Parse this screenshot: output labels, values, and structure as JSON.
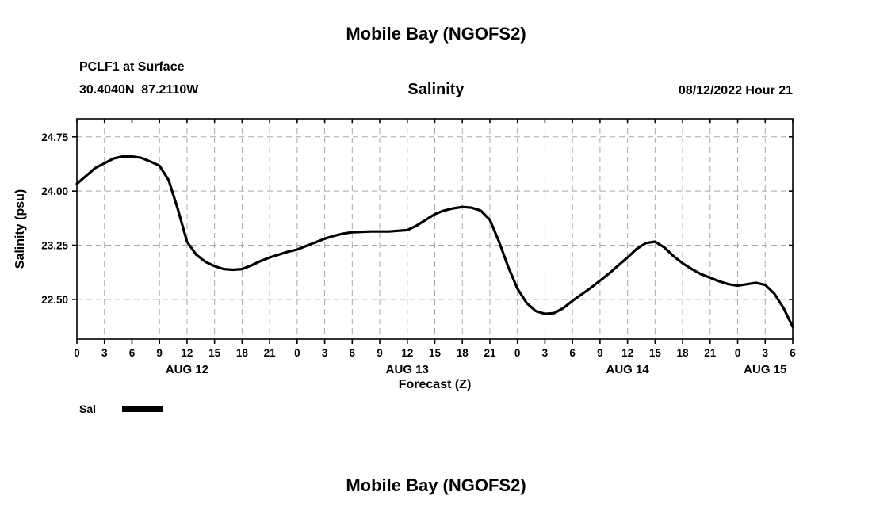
{
  "page": {
    "title": "Mobile Bay (NGOFS2)",
    "station_line1": "PCLF1 at Surface",
    "station_line2": "30.4040N  87.2110W",
    "header_datetime": "08/12/2022 Hour 21",
    "bottom_title": "Mobile Bay (NGOFS2)"
  },
  "chart_data": {
    "type": "line",
    "title": "Salinity",
    "xlabel": "Forecast (Z)",
    "ylabel": "Salinity (psu)",
    "xlim": [
      0,
      78
    ],
    "ylim": [
      21.95,
      25.0
    ],
    "grid": true,
    "legend_position": "below-left",
    "yticks": [
      22.5,
      23.25,
      24.0,
      24.75
    ],
    "ytick_labels": [
      "22.50",
      "23.25",
      "24.00",
      "24.75"
    ],
    "xticks": [
      0,
      3,
      6,
      9,
      12,
      15,
      18,
      21,
      24,
      27,
      30,
      33,
      36,
      39,
      42,
      45,
      48,
      51,
      54,
      57,
      60,
      63,
      66,
      69,
      72,
      75,
      78
    ],
    "xtick_labels": [
      "0",
      "3",
      "6",
      "9",
      "12",
      "15",
      "18",
      "21",
      "0",
      "3",
      "6",
      "9",
      "12",
      "15",
      "18",
      "21",
      "0",
      "3",
      "6",
      "9",
      "12",
      "15",
      "18",
      "21",
      "0",
      "3",
      "6"
    ],
    "date_labels": [
      {
        "label": "AUG 12",
        "x": 12
      },
      {
        "label": "AUG 13",
        "x": 36
      },
      {
        "label": "AUG 14",
        "x": 60
      },
      {
        "label": "AUG 15",
        "x": 75
      }
    ],
    "legend": [
      {
        "name": "Sal",
        "color": "#000000"
      }
    ],
    "series": [
      {
        "name": "Sal",
        "color": "#000000",
        "points": [
          [
            0,
            24.1
          ],
          [
            2,
            24.32
          ],
          [
            4,
            24.45
          ],
          [
            5,
            24.48
          ],
          [
            6,
            24.48
          ],
          [
            7,
            24.46
          ],
          [
            8,
            24.41
          ],
          [
            9,
            24.35
          ],
          [
            10,
            24.15
          ],
          [
            11,
            23.75
          ],
          [
            12,
            23.3
          ],
          [
            13,
            23.12
          ],
          [
            14,
            23.02
          ],
          [
            15,
            22.96
          ],
          [
            16,
            22.92
          ],
          [
            17,
            22.91
          ],
          [
            18,
            22.92
          ],
          [
            19,
            22.97
          ],
          [
            20,
            23.03
          ],
          [
            21,
            23.08
          ],
          [
            22,
            23.12
          ],
          [
            23,
            23.16
          ],
          [
            24,
            23.19
          ],
          [
            25,
            23.24
          ],
          [
            26,
            23.29
          ],
          [
            27,
            23.34
          ],
          [
            28,
            23.38
          ],
          [
            29,
            23.41
          ],
          [
            30,
            23.43
          ],
          [
            32,
            23.44
          ],
          [
            34,
            23.44
          ],
          [
            36,
            23.46
          ],
          [
            37,
            23.52
          ],
          [
            38,
            23.6
          ],
          [
            39,
            23.68
          ],
          [
            40,
            23.73
          ],
          [
            41,
            23.76
          ],
          [
            42,
            23.78
          ],
          [
            43,
            23.77
          ],
          [
            44,
            23.73
          ],
          [
            45,
            23.6
          ],
          [
            46,
            23.3
          ],
          [
            47,
            22.95
          ],
          [
            48,
            22.65
          ],
          [
            49,
            22.45
          ],
          [
            50,
            22.34
          ],
          [
            51,
            22.3
          ],
          [
            52,
            22.31
          ],
          [
            53,
            22.38
          ],
          [
            54,
            22.48
          ],
          [
            55,
            22.57
          ],
          [
            56,
            22.66
          ],
          [
            57,
            22.76
          ],
          [
            58,
            22.86
          ],
          [
            59,
            22.97
          ],
          [
            60,
            23.08
          ],
          [
            61,
            23.2
          ],
          [
            62,
            23.28
          ],
          [
            63,
            23.3
          ],
          [
            64,
            23.22
          ],
          [
            65,
            23.1
          ],
          [
            66,
            23.0
          ],
          [
            67,
            22.92
          ],
          [
            68,
            22.85
          ],
          [
            69,
            22.8
          ],
          [
            70,
            22.75
          ],
          [
            71,
            22.71
          ],
          [
            72,
            22.69
          ],
          [
            73,
            22.71
          ],
          [
            74,
            22.73
          ],
          [
            75,
            22.7
          ],
          [
            76,
            22.58
          ],
          [
            77,
            22.38
          ],
          [
            78,
            22.12
          ]
        ]
      }
    ]
  }
}
